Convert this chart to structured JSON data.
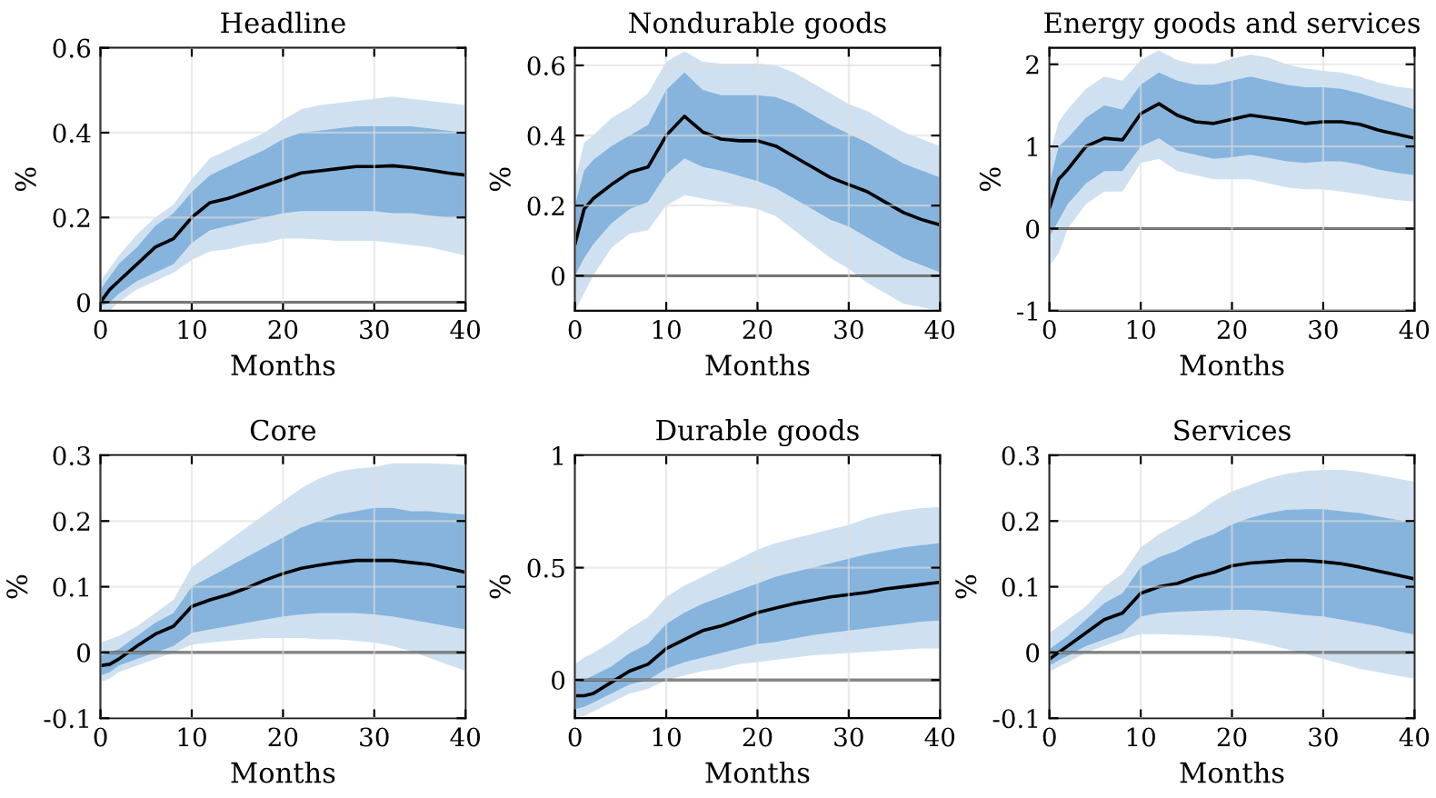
{
  "chart_data": [
    {
      "type": "line",
      "title": "Headline",
      "xlabel": "Months",
      "ylabel": "%",
      "x": [
        0,
        1,
        2,
        4,
        6,
        8,
        10,
        12,
        14,
        16,
        18,
        20,
        22,
        24,
        26,
        28,
        30,
        32,
        34,
        36,
        38,
        40
      ],
      "xlim": [
        0,
        40
      ],
      "xticks": [
        0,
        10,
        20,
        30,
        40
      ],
      "ylim": [
        -0.02,
        0.6
      ],
      "yticks": [
        0,
        0.2,
        0.4,
        0.6
      ],
      "grid": true,
      "ref_lines": [
        {
          "axis": "y",
          "value": 0,
          "color": "#000000"
        }
      ],
      "series": [
        {
          "color": "#cfe1f0",
          "values": [
            null,
            null,
            null,
            null,
            null,
            null,
            null,
            null,
            null,
            null,
            null,
            null,
            null,
            null,
            null,
            null,
            null,
            null,
            null,
            null,
            null,
            null
          ],
          "lower": [
            -0.02,
            -0.02,
            0.0,
            0.03,
            0.05,
            0.07,
            0.1,
            0.12,
            0.125,
            0.135,
            0.14,
            0.15,
            0.15,
            0.148,
            0.145,
            0.145,
            0.145,
            0.14,
            0.135,
            0.13,
            0.12,
            0.11
          ],
          "upper": [
            0.05,
            0.08,
            0.11,
            0.16,
            0.2,
            0.23,
            0.29,
            0.34,
            0.36,
            0.38,
            0.4,
            0.43,
            0.455,
            0.465,
            0.47,
            0.475,
            0.48,
            0.485,
            0.48,
            0.475,
            0.47,
            0.465
          ]
        },
        {
          "color": "#86b4dc",
          "values": [
            null,
            null,
            null,
            null,
            null,
            null,
            null,
            null,
            null,
            null,
            null,
            null,
            null,
            null,
            null,
            null,
            null,
            null,
            null,
            null,
            null,
            null
          ],
          "lower": [
            -0.01,
            0.0,
            0.02,
            0.05,
            0.07,
            0.09,
            0.14,
            0.17,
            0.18,
            0.19,
            0.2,
            0.21,
            0.215,
            0.215,
            0.215,
            0.215,
            0.215,
            0.21,
            0.21,
            0.205,
            0.2,
            0.2
          ],
          "upper": [
            0.03,
            0.06,
            0.09,
            0.13,
            0.18,
            0.21,
            0.26,
            0.3,
            0.32,
            0.34,
            0.36,
            0.385,
            0.4,
            0.405,
            0.41,
            0.415,
            0.415,
            0.415,
            0.415,
            0.41,
            0.405,
            0.4
          ]
        },
        {
          "color": "#000000",
          "values": [
            0,
            0.03,
            0.05,
            0.09,
            0.13,
            0.15,
            0.2,
            0.235,
            0.245,
            0.26,
            0.275,
            0.29,
            0.305,
            0.31,
            0.315,
            0.32,
            0.32,
            0.322,
            0.318,
            0.312,
            0.305,
            0.3
          ]
        }
      ]
    },
    {
      "type": "line",
      "title": "Nondurable goods",
      "xlabel": "Months",
      "ylabel": "%",
      "x": [
        0,
        1,
        2,
        4,
        6,
        8,
        10,
        12,
        14,
        16,
        18,
        20,
        22,
        24,
        26,
        28,
        30,
        32,
        34,
        36,
        38,
        40
      ],
      "xlim": [
        0,
        40
      ],
      "xticks": [
        0,
        10,
        20,
        30,
        40
      ],
      "ylim": [
        -0.1,
        0.65
      ],
      "yticks": [
        0,
        0.2,
        0.4,
        0.6
      ],
      "grid": true,
      "ref_lines": [
        {
          "axis": "y",
          "value": 0,
          "color": "#000000"
        }
      ],
      "series": [
        {
          "color": "#cfe1f0",
          "values": [
            null,
            null,
            null,
            null,
            null,
            null,
            null,
            null,
            null,
            null,
            null,
            null,
            null,
            null,
            null,
            null,
            null,
            null,
            null,
            null,
            null,
            null
          ],
          "lower": [
            -0.1,
            -0.05,
            0.0,
            0.08,
            0.12,
            0.13,
            0.2,
            0.23,
            0.22,
            0.21,
            0.2,
            0.19,
            0.17,
            0.13,
            0.09,
            0.05,
            0.02,
            -0.02,
            -0.05,
            -0.08,
            -0.09,
            -0.1
          ],
          "upper": [
            0.27,
            0.38,
            0.4,
            0.45,
            0.48,
            0.52,
            0.61,
            0.64,
            0.61,
            0.605,
            0.605,
            0.605,
            0.6,
            0.58,
            0.55,
            0.52,
            0.49,
            0.47,
            0.44,
            0.41,
            0.39,
            0.37
          ]
        },
        {
          "color": "#86b4dc",
          "values": [
            null,
            null,
            null,
            null,
            null,
            null,
            null,
            null,
            null,
            null,
            null,
            null,
            null,
            null,
            null,
            null,
            null,
            null,
            null,
            null,
            null,
            null
          ],
          "lower": [
            0.0,
            0.05,
            0.09,
            0.15,
            0.19,
            0.21,
            0.29,
            0.335,
            0.31,
            0.3,
            0.285,
            0.27,
            0.25,
            0.22,
            0.19,
            0.16,
            0.14,
            0.11,
            0.08,
            0.05,
            0.03,
            0.01
          ],
          "upper": [
            0.2,
            0.3,
            0.33,
            0.37,
            0.4,
            0.43,
            0.53,
            0.58,
            0.53,
            0.515,
            0.515,
            0.515,
            0.51,
            0.49,
            0.46,
            0.43,
            0.405,
            0.38,
            0.35,
            0.32,
            0.3,
            0.28
          ]
        },
        {
          "color": "#000000",
          "values": [
            0.09,
            0.19,
            0.22,
            0.26,
            0.295,
            0.31,
            0.4,
            0.455,
            0.41,
            0.39,
            0.385,
            0.385,
            0.37,
            0.34,
            0.31,
            0.28,
            0.26,
            0.24,
            0.21,
            0.18,
            0.16,
            0.145
          ]
        }
      ]
    },
    {
      "type": "line",
      "title": "Energy goods and services",
      "xlabel": "Months",
      "ylabel": "%",
      "x": [
        0,
        1,
        2,
        4,
        6,
        8,
        10,
        12,
        14,
        16,
        18,
        20,
        22,
        24,
        26,
        28,
        30,
        32,
        34,
        36,
        38,
        40
      ],
      "xlim": [
        0,
        40
      ],
      "xticks": [
        0,
        10,
        20,
        30,
        40
      ],
      "ylim": [
        -1,
        2.2
      ],
      "yticks": [
        -1,
        0,
        1,
        2
      ],
      "grid": true,
      "ref_lines": [
        {
          "axis": "y",
          "value": 0,
          "color": "#000000"
        }
      ],
      "series": [
        {
          "color": "#cfe1f0",
          "values": [
            null,
            null,
            null,
            null,
            null,
            null,
            null,
            null,
            null,
            null,
            null,
            null,
            null,
            null,
            null,
            null,
            null,
            null,
            null,
            null,
            null,
            null
          ],
          "lower": [
            -0.45,
            -0.3,
            0.0,
            0.3,
            0.45,
            0.45,
            0.8,
            0.85,
            0.7,
            0.65,
            0.6,
            0.6,
            0.6,
            0.55,
            0.5,
            0.48,
            0.48,
            0.45,
            0.42,
            0.38,
            0.35,
            0.33
          ],
          "upper": [
            0.9,
            1.3,
            1.45,
            1.7,
            1.85,
            1.8,
            2.05,
            2.17,
            2.05,
            2.0,
            2.0,
            2.07,
            2.12,
            2.08,
            2.0,
            1.95,
            1.92,
            1.9,
            1.85,
            1.78,
            1.73,
            1.7
          ]
        },
        {
          "color": "#86b4dc",
          "values": [
            null,
            null,
            null,
            null,
            null,
            null,
            null,
            null,
            null,
            null,
            null,
            null,
            null,
            null,
            null,
            null,
            null,
            null,
            null,
            null,
            null,
            null
          ],
          "lower": [
            -0.1,
            0.1,
            0.3,
            0.55,
            0.7,
            0.7,
            1.0,
            1.1,
            0.95,
            0.9,
            0.85,
            0.87,
            0.9,
            0.86,
            0.82,
            0.8,
            0.82,
            0.82,
            0.78,
            0.72,
            0.68,
            0.65
          ],
          "upper": [
            0.55,
            1.0,
            1.1,
            1.35,
            1.5,
            1.45,
            1.75,
            1.9,
            1.8,
            1.75,
            1.75,
            1.8,
            1.85,
            1.8,
            1.75,
            1.72,
            1.72,
            1.7,
            1.65,
            1.58,
            1.52,
            1.45
          ]
        },
        {
          "color": "#000000",
          "values": [
            0.25,
            0.6,
            0.72,
            1.0,
            1.1,
            1.08,
            1.4,
            1.52,
            1.38,
            1.3,
            1.28,
            1.33,
            1.38,
            1.35,
            1.32,
            1.28,
            1.3,
            1.3,
            1.27,
            1.2,
            1.15,
            1.1
          ]
        }
      ]
    },
    {
      "type": "line",
      "title": "Core",
      "xlabel": "Months",
      "ylabel": "%",
      "x": [
        0,
        1,
        2,
        4,
        6,
        8,
        10,
        12,
        14,
        16,
        18,
        20,
        22,
        24,
        26,
        28,
        30,
        32,
        34,
        36,
        38,
        40
      ],
      "xlim": [
        0,
        40
      ],
      "xticks": [
        0,
        10,
        20,
        30,
        40
      ],
      "ylim": [
        -0.1,
        0.3
      ],
      "yticks": [
        -0.1,
        0,
        0.1,
        0.2,
        0.3
      ],
      "grid": true,
      "ref_lines": [
        {
          "axis": "y",
          "value": 0,
          "color": "#000000"
        }
      ],
      "series": [
        {
          "color": "#cfe1f0",
          "values": [
            null,
            null,
            null,
            null,
            null,
            null,
            null,
            null,
            null,
            null,
            null,
            null,
            null,
            null,
            null,
            null,
            null,
            null,
            null,
            null,
            null,
            null
          ],
          "lower": [
            -0.045,
            -0.04,
            -0.03,
            -0.02,
            -0.01,
            0.0,
            0.012,
            0.015,
            0.018,
            0.02,
            0.022,
            0.022,
            0.022,
            0.02,
            0.02,
            0.018,
            0.015,
            0.01,
            0.002,
            -0.008,
            -0.018,
            -0.028
          ],
          "upper": [
            0.015,
            0.02,
            0.025,
            0.04,
            0.06,
            0.08,
            0.13,
            0.15,
            0.17,
            0.19,
            0.21,
            0.23,
            0.25,
            0.265,
            0.275,
            0.28,
            0.282,
            0.288,
            0.288,
            0.288,
            0.287,
            0.285
          ]
        },
        {
          "color": "#86b4dc",
          "values": [
            null,
            null,
            null,
            null,
            null,
            null,
            null,
            null,
            null,
            null,
            null,
            null,
            null,
            null,
            null,
            null,
            null,
            null,
            null,
            null,
            null,
            null
          ],
          "lower": [
            -0.035,
            -0.03,
            -0.02,
            -0.01,
            0.0,
            0.01,
            0.03,
            0.035,
            0.04,
            0.045,
            0.05,
            0.055,
            0.058,
            0.06,
            0.06,
            0.06,
            0.058,
            0.055,
            0.05,
            0.045,
            0.04,
            0.035
          ],
          "upper": [
            -0.005,
            0.0,
            0.005,
            0.025,
            0.045,
            0.06,
            0.1,
            0.115,
            0.13,
            0.145,
            0.16,
            0.175,
            0.19,
            0.2,
            0.21,
            0.215,
            0.22,
            0.22,
            0.215,
            0.215,
            0.212,
            0.21
          ]
        },
        {
          "color": "#000000",
          "values": [
            -0.02,
            -0.018,
            -0.01,
            0.01,
            0.028,
            0.04,
            0.07,
            0.08,
            0.088,
            0.098,
            0.11,
            0.12,
            0.128,
            0.133,
            0.137,
            0.14,
            0.14,
            0.14,
            0.137,
            0.134,
            0.128,
            0.122
          ]
        }
      ]
    },
    {
      "type": "line",
      "title": "Durable goods",
      "xlabel": "Months",
      "ylabel": "%",
      "x": [
        0,
        1,
        2,
        4,
        6,
        8,
        10,
        12,
        14,
        16,
        18,
        20,
        22,
        24,
        26,
        28,
        30,
        32,
        34,
        36,
        38,
        40
      ],
      "xlim": [
        0,
        40
      ],
      "xticks": [
        0,
        10,
        20,
        30,
        40
      ],
      "ylim": [
        -0.17,
        1
      ],
      "yticks": [
        0,
        0.5,
        1
      ],
      "grid": true,
      "ref_lines": [
        {
          "axis": "y",
          "value": 0,
          "color": "#000000"
        }
      ],
      "series": [
        {
          "color": "#cfe1f0",
          "values": [
            null,
            null,
            null,
            null,
            null,
            null,
            null,
            null,
            null,
            null,
            null,
            null,
            null,
            null,
            null,
            null,
            null,
            null,
            null,
            null,
            null,
            null
          ],
          "lower": [
            -0.17,
            -0.16,
            -0.14,
            -0.1,
            -0.06,
            -0.04,
            0.0,
            0.02,
            0.04,
            0.05,
            0.07,
            0.08,
            0.09,
            0.1,
            0.11,
            0.115,
            0.12,
            0.125,
            0.13,
            0.135,
            0.14,
            0.14
          ],
          "upper": [
            0.07,
            0.1,
            0.12,
            0.17,
            0.23,
            0.28,
            0.37,
            0.42,
            0.46,
            0.5,
            0.54,
            0.58,
            0.61,
            0.63,
            0.65,
            0.67,
            0.69,
            0.72,
            0.74,
            0.755,
            0.765,
            0.77
          ]
        },
        {
          "color": "#86b4dc",
          "values": [
            null,
            null,
            null,
            null,
            null,
            null,
            null,
            null,
            null,
            null,
            null,
            null,
            null,
            null,
            null,
            null,
            null,
            null,
            null,
            null,
            null,
            null
          ],
          "lower": [
            -0.13,
            -0.12,
            -0.1,
            -0.06,
            -0.02,
            0.0,
            0.05,
            0.08,
            0.1,
            0.12,
            0.14,
            0.16,
            0.17,
            0.185,
            0.2,
            0.21,
            0.22,
            0.23,
            0.24,
            0.25,
            0.26,
            0.265
          ],
          "upper": [
            -0.01,
            0.0,
            0.02,
            0.06,
            0.12,
            0.16,
            0.25,
            0.3,
            0.34,
            0.37,
            0.4,
            0.43,
            0.46,
            0.48,
            0.5,
            0.52,
            0.54,
            0.56,
            0.575,
            0.59,
            0.6,
            0.61
          ]
        },
        {
          "color": "#000000",
          "values": [
            -0.07,
            -0.07,
            -0.06,
            -0.01,
            0.04,
            0.07,
            0.14,
            0.18,
            0.22,
            0.24,
            0.27,
            0.3,
            0.32,
            0.34,
            0.355,
            0.37,
            0.38,
            0.39,
            0.405,
            0.415,
            0.425,
            0.435
          ]
        }
      ]
    },
    {
      "type": "line",
      "title": "Services",
      "xlabel": "Months",
      "ylabel": "%",
      "x": [
        0,
        1,
        2,
        4,
        6,
        8,
        10,
        12,
        14,
        16,
        18,
        20,
        22,
        24,
        26,
        28,
        30,
        32,
        34,
        36,
        38,
        40
      ],
      "xlim": [
        0,
        40
      ],
      "xticks": [
        0,
        10,
        20,
        30,
        40
      ],
      "ylim": [
        -0.1,
        0.3
      ],
      "yticks": [
        -0.1,
        0,
        0.1,
        0.2,
        0.3
      ],
      "grid": true,
      "ref_lines": [
        {
          "axis": "y",
          "value": 0,
          "color": "#000000"
        }
      ],
      "series": [
        {
          "color": "#cfe1f0",
          "values": [
            null,
            null,
            null,
            null,
            null,
            null,
            null,
            null,
            null,
            null,
            null,
            null,
            null,
            null,
            null,
            null,
            null,
            null,
            null,
            null,
            null,
            null
          ],
          "lower": [
            -0.03,
            -0.022,
            -0.015,
            0.0,
            0.01,
            0.02,
            0.028,
            0.028,
            0.027,
            0.026,
            0.025,
            0.022,
            0.018,
            0.012,
            0.005,
            -0.002,
            -0.01,
            -0.017,
            -0.025,
            -0.03,
            -0.035,
            -0.04
          ],
          "upper": [
            0.03,
            0.04,
            0.05,
            0.07,
            0.1,
            0.12,
            0.16,
            0.18,
            0.195,
            0.21,
            0.23,
            0.245,
            0.255,
            0.265,
            0.272,
            0.276,
            0.278,
            0.278,
            0.275,
            0.27,
            0.265,
            0.26
          ]
        },
        {
          "color": "#86b4dc",
          "values": [
            null,
            null,
            null,
            null,
            null,
            null,
            null,
            null,
            null,
            null,
            null,
            null,
            null,
            null,
            null,
            null,
            null,
            null,
            null,
            null,
            null,
            null
          ],
          "lower": [
            -0.02,
            -0.012,
            -0.005,
            0.01,
            0.02,
            0.03,
            0.055,
            0.06,
            0.062,
            0.063,
            0.064,
            0.065,
            0.065,
            0.063,
            0.06,
            0.057,
            0.055,
            0.05,
            0.045,
            0.04,
            0.033,
            0.027
          ],
          "upper": [
            0.005,
            0.015,
            0.025,
            0.05,
            0.075,
            0.09,
            0.13,
            0.145,
            0.155,
            0.17,
            0.18,
            0.195,
            0.205,
            0.212,
            0.217,
            0.218,
            0.218,
            0.215,
            0.212,
            0.207,
            0.202,
            0.197
          ]
        },
        {
          "color": "#000000",
          "values": [
            -0.01,
            0.0,
            0.01,
            0.03,
            0.05,
            0.06,
            0.09,
            0.1,
            0.105,
            0.115,
            0.122,
            0.132,
            0.136,
            0.138,
            0.14,
            0.14,
            0.138,
            0.135,
            0.13,
            0.124,
            0.118,
            0.112
          ]
        }
      ]
    }
  ]
}
